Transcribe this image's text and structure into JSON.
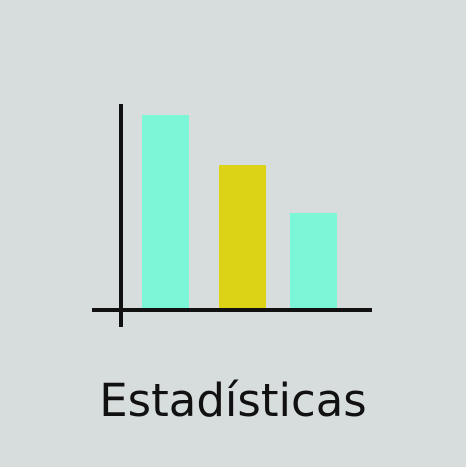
{
  "tile": {
    "label": "Estadísticas",
    "icon_name": "bar-chart-icon"
  },
  "colors": {
    "background": "#d7dcdc",
    "bar_teal": "#7bf7d8",
    "bar_yellow": "#ddd316",
    "axis": "#111111"
  },
  "icon_bars": [
    {
      "value": 0.92,
      "color": "#7bf7d8"
    },
    {
      "value": 0.68,
      "color": "#ddd316"
    },
    {
      "value": 0.45,
      "color": "#7bf7d8"
    }
  ]
}
